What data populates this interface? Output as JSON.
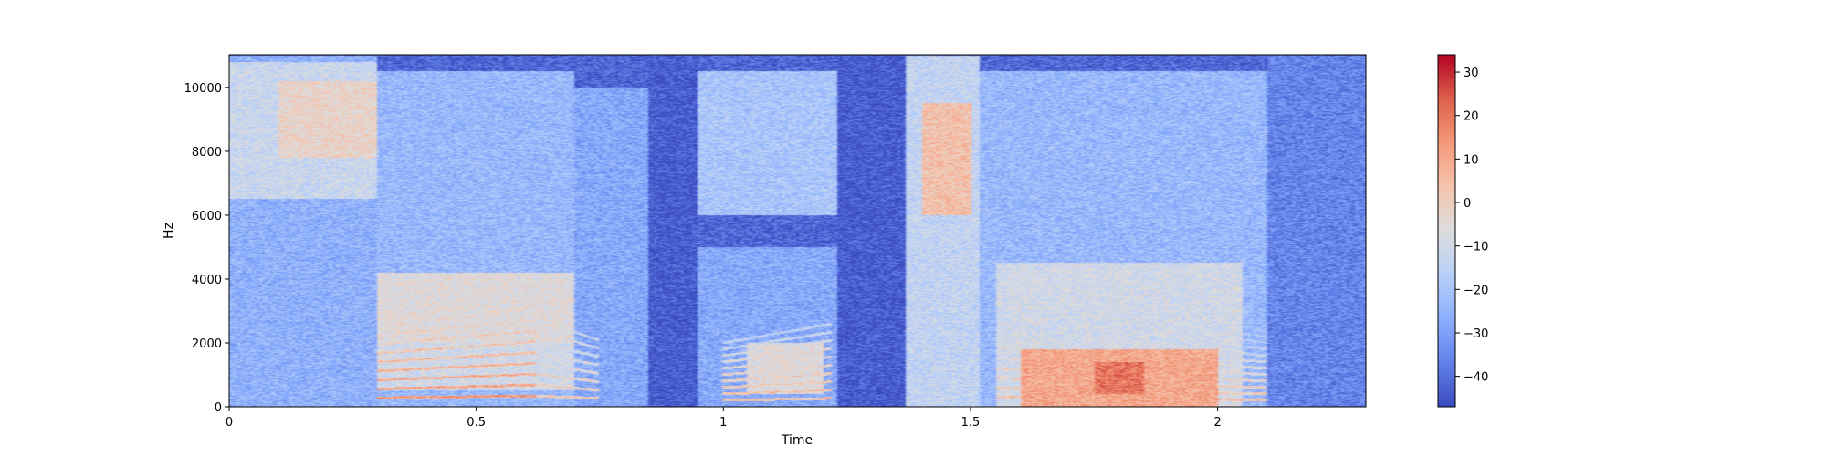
{
  "chart_data": {
    "type": "heatmap",
    "title": "",
    "xlabel": "Time",
    "ylabel": "Hz",
    "xlim": [
      0,
      2.3
    ],
    "ylim": [
      0,
      11025
    ],
    "x_ticks": [
      {
        "value": 0,
        "label": "0"
      },
      {
        "value": 0.5,
        "label": "0.5"
      },
      {
        "value": 1,
        "label": "1"
      },
      {
        "value": 1.5,
        "label": "1.5"
      },
      {
        "value": 2,
        "label": "2"
      }
    ],
    "y_ticks": [
      {
        "value": 0,
        "label": "0"
      },
      {
        "value": 2000,
        "label": "2000"
      },
      {
        "value": 4000,
        "label": "4000"
      },
      {
        "value": 6000,
        "label": "6000"
      },
      {
        "value": 8000,
        "label": "8000"
      },
      {
        "value": 10000,
        "label": "10000"
      }
    ],
    "colormap": "coolwarm",
    "colorbar": {
      "range": [
        -47,
        34
      ],
      "ticks": [
        {
          "value": 30,
          "label": "30"
        },
        {
          "value": 20,
          "label": "20"
        },
        {
          "value": 10,
          "label": "10"
        },
        {
          "value": 0,
          "label": "0"
        },
        {
          "value": -10,
          "label": "−10"
        },
        {
          "value": -20,
          "label": "−20"
        },
        {
          "value": -30,
          "label": "−30"
        },
        {
          "value": -40,
          "label": "−40"
        }
      ]
    },
    "background_db": -42,
    "regions": [
      {
        "t": [
          0.0,
          0.3
        ],
        "f": [
          0,
          11000
        ],
        "db": -26
      },
      {
        "t": [
          0.0,
          0.3
        ],
        "f": [
          6500,
          10800
        ],
        "db": -12
      },
      {
        "t": [
          0.1,
          0.3
        ],
        "f": [
          7800,
          10200
        ],
        "db": -2
      },
      {
        "t": [
          0.3,
          0.7
        ],
        "f": [
          0,
          10500
        ],
        "db": -24
      },
      {
        "t": [
          0.3,
          0.7
        ],
        "f": [
          2000,
          4200
        ],
        "db": -6
      },
      {
        "t": [
          0.3,
          0.7
        ],
        "f": [
          500,
          2000
        ],
        "db": -10
      },
      {
        "t": [
          0.7,
          0.85
        ],
        "f": [
          0,
          10000
        ],
        "db": -28
      },
      {
        "t": [
          0.85,
          0.95
        ],
        "f": [
          0,
          11000
        ],
        "db": -44
      },
      {
        "t": [
          0.95,
          1.23
        ],
        "f": [
          0,
          5000
        ],
        "db": -28
      },
      {
        "t": [
          0.95,
          1.23
        ],
        "f": [
          6000,
          10500
        ],
        "db": -20
      },
      {
        "t": [
          0.95,
          1.23
        ],
        "f": [
          5000,
          6000
        ],
        "db": -42
      },
      {
        "t": [
          1.05,
          1.2
        ],
        "f": [
          400,
          2000
        ],
        "db": -6
      },
      {
        "t": [
          1.23,
          1.37
        ],
        "f": [
          0,
          11000
        ],
        "db": -44
      },
      {
        "t": [
          1.37,
          1.52
        ],
        "f": [
          0,
          11000
        ],
        "db": -14
      },
      {
        "t": [
          1.4,
          1.5
        ],
        "f": [
          6000,
          9500
        ],
        "db": 4
      },
      {
        "t": [
          1.52,
          2.1
        ],
        "f": [
          0,
          10500
        ],
        "db": -24
      },
      {
        "t": [
          1.55,
          2.05
        ],
        "f": [
          0,
          4500
        ],
        "db": -10
      },
      {
        "t": [
          1.6,
          2.0
        ],
        "f": [
          0,
          1800
        ],
        "db": 10
      },
      {
        "t": [
          1.75,
          1.85
        ],
        "f": [
          400,
          1400
        ],
        "db": 20
      },
      {
        "t": [
          2.1,
          2.3
        ],
        "f": [
          0,
          11000
        ],
        "db": -36
      }
    ],
    "harmonic_tracks": [
      {
        "t": [
          0.3,
          0.62
        ],
        "f0": 280,
        "f1": 340,
        "count": 10,
        "db": 16
      },
      {
        "t": [
          0.62,
          0.75
        ],
        "f0": 340,
        "f1": 260,
        "count": 8,
        "db": 4
      },
      {
        "t": [
          1.0,
          1.22
        ],
        "f0": 200,
        "f1": 260,
        "count": 10,
        "db": 8
      },
      {
        "t": [
          1.55,
          2.1
        ],
        "f0": 300,
        "f1": 200,
        "count": 12,
        "db": 6
      }
    ]
  }
}
